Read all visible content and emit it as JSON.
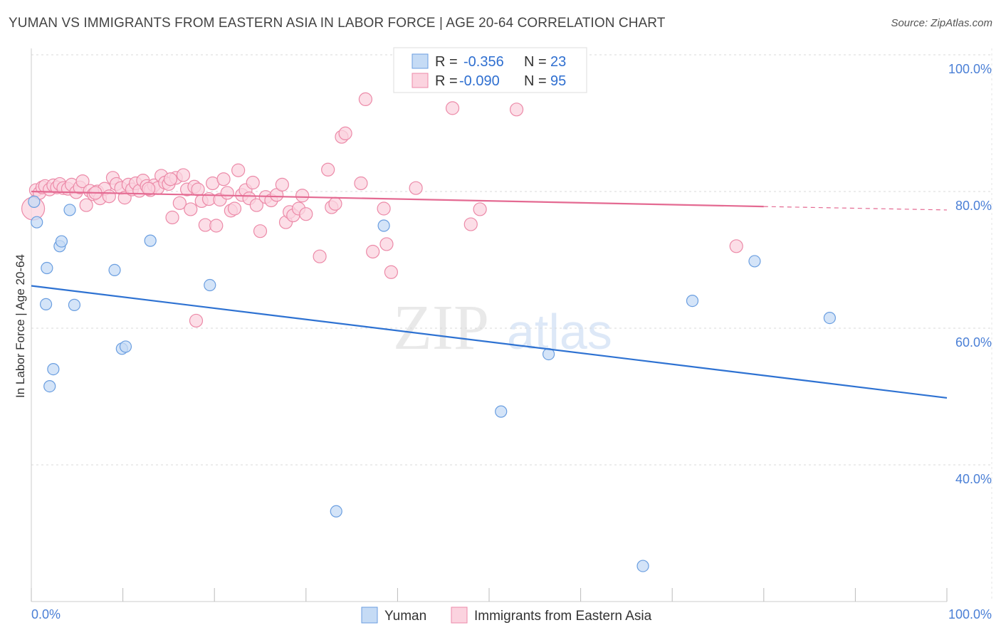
{
  "header": {
    "title": "YUMAN VS IMMIGRANTS FROM EASTERN ASIA IN LABOR FORCE | AGE 20-64 CORRELATION CHART",
    "source": "Source: ZipAtlas.com"
  },
  "legend": {
    "r_label": "R =",
    "n_label": "N =",
    "rows": [
      {
        "r": "-0.356",
        "n": "23",
        "color": "#a8c8f0"
      },
      {
        "r": "-0.090",
        "n": "95",
        "color": "#f5b8cc"
      }
    ]
  },
  "watermark": {
    "zip": "ZIP",
    "atlas": "atlas"
  },
  "chart_data": {
    "type": "scatter",
    "ylabel": "In Labor Force | Age 20-64",
    "xlim": [
      0,
      100
    ],
    "ylim": [
      20,
      104
    ],
    "x_tick_labels": {
      "left": "0.0%",
      "right": "100.0%"
    },
    "y_ticks": [
      {
        "value": 100,
        "label": "100.0%"
      },
      {
        "value": 80,
        "label": "80.0%"
      },
      {
        "value": 60,
        "label": "60.0%"
      },
      {
        "value": 40,
        "label": "40.0%"
      }
    ],
    "grid": true,
    "colors": {
      "yuman_fill": "#c5dbf5",
      "yuman_stroke": "#6a9ee0",
      "yuman_line": "#2e72d2",
      "asia_fill": "#fbd3df",
      "asia_stroke": "#ec8aa8",
      "asia_line": "#e46a92"
    },
    "series": [
      {
        "name": "Yuman",
        "trend": {
          "x0": 0,
          "y0": 66.2,
          "x1": 100,
          "y1": 49.8
        },
        "points": [
          [
            0.3,
            78.5
          ],
          [
            0.6,
            75.5
          ],
          [
            1.6,
            63.5
          ],
          [
            1.7,
            68.8
          ],
          [
            2.0,
            51.5
          ],
          [
            2.4,
            54.0
          ],
          [
            3.1,
            72.0
          ],
          [
            3.3,
            72.7
          ],
          [
            4.2,
            77.3
          ],
          [
            4.7,
            63.4
          ],
          [
            9.1,
            68.5
          ],
          [
            9.9,
            57.0
          ],
          [
            10.3,
            57.3
          ],
          [
            13.0,
            72.8
          ],
          [
            19.5,
            66.3
          ],
          [
            33.3,
            33.2
          ],
          [
            38.5,
            75.0
          ],
          [
            51.3,
            47.8
          ],
          [
            56.5,
            56.2
          ],
          [
            66.8,
            25.2
          ],
          [
            72.2,
            64.0
          ],
          [
            79.0,
            69.8
          ],
          [
            87.2,
            61.5
          ]
        ]
      },
      {
        "name": "Immigrants from Eastern Asia",
        "trend": {
          "x0": 0,
          "y0": 80.0,
          "x1": 80,
          "y1": 77.8,
          "x_dash_end": 100,
          "y_dash_end": 77.3
        },
        "points": [
          [
            0.2,
            77.5
          ],
          [
            0.5,
            80.2
          ],
          [
            0.9,
            79.8
          ],
          [
            1.2,
            80.6
          ],
          [
            1.5,
            80.8
          ],
          [
            2.0,
            80.3
          ],
          [
            2.4,
            80.9
          ],
          [
            2.8,
            80.6
          ],
          [
            3.1,
            81.1
          ],
          [
            3.5,
            80.5
          ],
          [
            4.0,
            80.4
          ],
          [
            4.4,
            81.0
          ],
          [
            4.9,
            79.9
          ],
          [
            5.3,
            80.6
          ],
          [
            5.6,
            81.5
          ],
          [
            6.0,
            78.0
          ],
          [
            6.4,
            80.1
          ],
          [
            6.8,
            79.6
          ],
          [
            7.2,
            80.0
          ],
          [
            7.5,
            79.0
          ],
          [
            8.0,
            80.4
          ],
          [
            8.5,
            79.3
          ],
          [
            8.9,
            82.0
          ],
          [
            9.3,
            81.1
          ],
          [
            9.8,
            80.5
          ],
          [
            10.2,
            79.1
          ],
          [
            10.6,
            81.0
          ],
          [
            11.0,
            80.3
          ],
          [
            11.4,
            81.2
          ],
          [
            11.8,
            80.1
          ],
          [
            12.2,
            81.6
          ],
          [
            12.6,
            80.8
          ],
          [
            13.0,
            80.2
          ],
          [
            13.4,
            80.9
          ],
          [
            13.8,
            80.5
          ],
          [
            14.2,
            82.3
          ],
          [
            14.6,
            81.3
          ],
          [
            15.0,
            81.1
          ],
          [
            15.4,
            76.2
          ],
          [
            15.8,
            82.0
          ],
          [
            16.2,
            78.3
          ],
          [
            16.6,
            82.4
          ],
          [
            17.0,
            80.3
          ],
          [
            17.4,
            77.4
          ],
          [
            17.8,
            80.7
          ],
          [
            18.2,
            80.3
          ],
          [
            18.6,
            78.6
          ],
          [
            19.0,
            75.1
          ],
          [
            19.4,
            78.9
          ],
          [
            19.8,
            81.2
          ],
          [
            20.2,
            75.0
          ],
          [
            20.6,
            78.8
          ],
          [
            21.0,
            81.8
          ],
          [
            21.4,
            79.8
          ],
          [
            21.8,
            77.2
          ],
          [
            22.2,
            77.5
          ],
          [
            22.6,
            83.1
          ],
          [
            23.0,
            79.5
          ],
          [
            23.4,
            80.2
          ],
          [
            23.8,
            79.0
          ],
          [
            24.2,
            81.3
          ],
          [
            24.6,
            78.0
          ],
          [
            25.0,
            74.2
          ],
          [
            25.6,
            79.2
          ],
          [
            26.2,
            78.7
          ],
          [
            26.8,
            79.5
          ],
          [
            27.4,
            81.0
          ],
          [
            27.8,
            75.5
          ],
          [
            28.2,
            77.0
          ],
          [
            28.6,
            76.5
          ],
          [
            29.2,
            77.5
          ],
          [
            29.6,
            79.4
          ],
          [
            30.0,
            76.7
          ],
          [
            31.5,
            70.5
          ],
          [
            32.4,
            83.2
          ],
          [
            32.8,
            77.7
          ],
          [
            33.2,
            78.2
          ],
          [
            33.9,
            88.0
          ],
          [
            34.3,
            88.5
          ],
          [
            36.0,
            81.2
          ],
          [
            36.5,
            93.5
          ],
          [
            37.3,
            71.2
          ],
          [
            38.5,
            77.5
          ],
          [
            38.8,
            72.3
          ],
          [
            39.3,
            68.2
          ],
          [
            42.0,
            80.5
          ],
          [
            46.0,
            92.2
          ],
          [
            48.0,
            75.2
          ],
          [
            49.0,
            77.4
          ],
          [
            53.0,
            92.0
          ],
          [
            18.0,
            61.1
          ],
          [
            77.0,
            72.0
          ],
          [
            7.0,
            79.8
          ],
          [
            12.8,
            80.4
          ],
          [
            15.2,
            81.8
          ]
        ]
      }
    ]
  }
}
